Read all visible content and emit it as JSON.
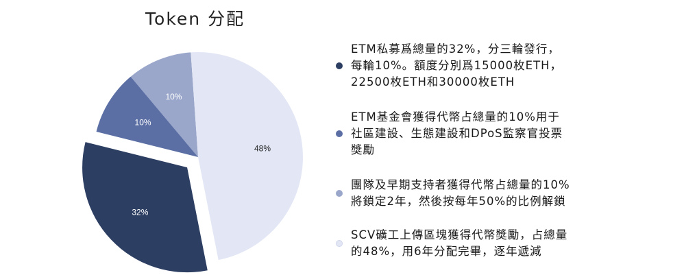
{
  "chart_data": {
    "type": "pie",
    "title": "Token 分配",
    "slices": [
      {
        "label": "10%",
        "value": 10,
        "color": "#9aa7cb"
      },
      {
        "label": "10%",
        "value": 10,
        "color": "#5b6fa5"
      },
      {
        "label": "32%",
        "value": 32,
        "color": "#2d3e63"
      },
      {
        "label": "48%",
        "value": 48,
        "color": "#e3e7f5"
      }
    ],
    "legend": [
      {
        "text": "ETM私募爲總量的32%，分三輪發行，\n每輪10%。額度分別爲15000枚ETH，\n22500枚ETH和30000枚ETH",
        "color": "#2d3e63"
      },
      {
        "text": "ETM基金會獲得代幣占總量的10%用于\n社區建設、生態建設和DPoS監察官投票\n獎勵",
        "color": "#5b6fa5"
      },
      {
        "text": "團隊及早期支持者獲得代幣占總量的10%\n將鎖定2年，然後按每年50%的比例解鎖",
        "color": "#9aa7cb"
      },
      {
        "text": "SCV礦工上傳區塊獲得代幣獎勵，占總量\n的48%，用6年分配完畢，逐年遞減",
        "color": "#e3e7f5"
      }
    ],
    "legend_position": "right"
  }
}
